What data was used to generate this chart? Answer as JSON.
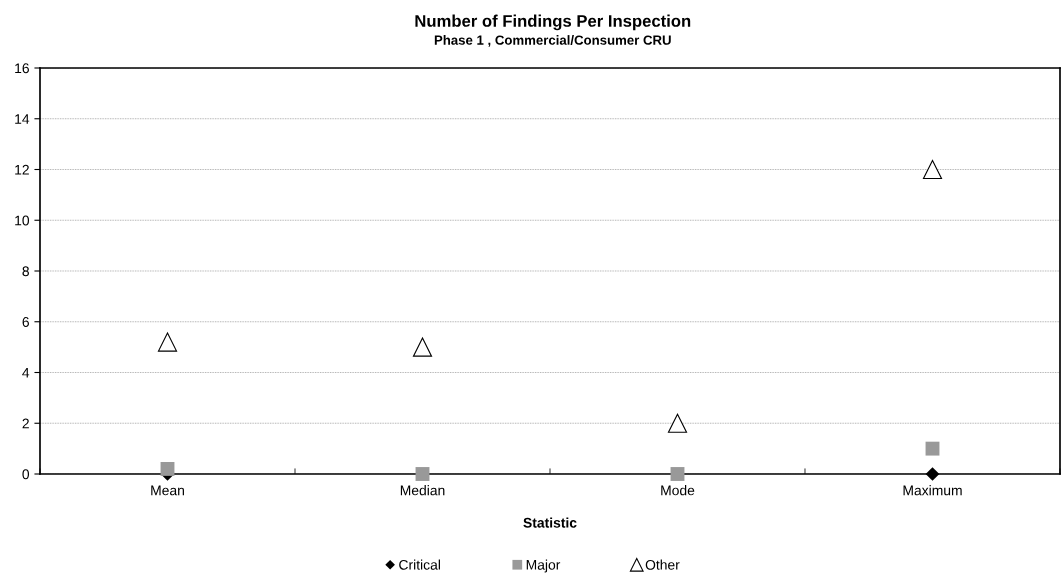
{
  "chart_data": {
    "type": "scatter",
    "title": "Number of Findings Per Inspection",
    "subtitle": "Phase 1 , Commercial/Consumer CRU",
    "xlabel": "Statistic",
    "categories": [
      "Mean",
      "Median",
      "Mode",
      "Maximum"
    ],
    "series": [
      {
        "name": "Critical",
        "color": "#000000",
        "marker": "diamond",
        "values": [
          0,
          null,
          null,
          0
        ]
      },
      {
        "name": "Major",
        "color": "#999999",
        "marker": "square",
        "values": [
          0.2,
          0,
          0,
          1
        ]
      },
      {
        "name": "Other",
        "color": "#000000",
        "marker": "triangle",
        "values": [
          5.2,
          5,
          2,
          12
        ]
      }
    ],
    "ylim": [
      0,
      16
    ],
    "yticks": [
      0,
      2,
      4,
      6,
      8,
      10,
      12,
      14,
      16
    ],
    "grid": "y",
    "legend": "bottom"
  }
}
